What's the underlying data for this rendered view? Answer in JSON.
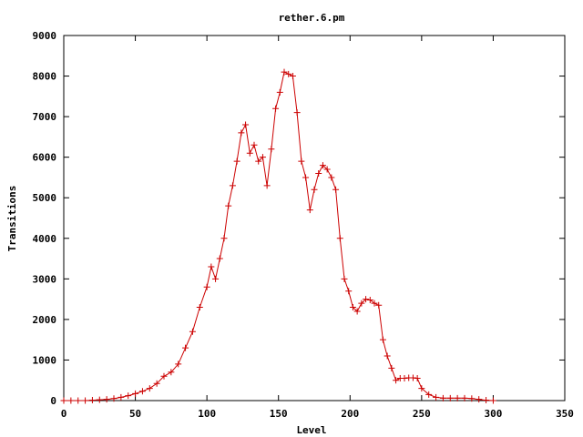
{
  "chart_data": {
    "type": "line",
    "title": "rether.6.pm",
    "xlabel": "Level",
    "ylabel": "Transitions",
    "xlim": [
      0,
      350
    ],
    "ylim": [
      0,
      9000
    ],
    "x_ticks": [
      0,
      50,
      100,
      150,
      200,
      250,
      300,
      350
    ],
    "y_ticks": [
      0,
      1000,
      2000,
      3000,
      4000,
      5000,
      6000,
      7000,
      8000,
      9000
    ],
    "grid": false,
    "legend": "none",
    "marker": "+",
    "color": "#cc0000",
    "series": [
      {
        "x": [
          0,
          5,
          10,
          15,
          20,
          25,
          30,
          35,
          40,
          45,
          50,
          55,
          60,
          65,
          70,
          75,
          80,
          85,
          90,
          95,
          100,
          103,
          106,
          109,
          112,
          115,
          118,
          121,
          124,
          127,
          130,
          133,
          136,
          139,
          142,
          145,
          148,
          151,
          154,
          157,
          160,
          163,
          166,
          169,
          172,
          175,
          178,
          181,
          184,
          187,
          190,
          193,
          196,
          199,
          202,
          205,
          208,
          211,
          214,
          217,
          220,
          223,
          226,
          229,
          232,
          235,
          238,
          241,
          244,
          247,
          250,
          255,
          260,
          265,
          270,
          275,
          280,
          285,
          290,
          295,
          300
        ],
        "y": [
          0,
          0,
          0,
          0,
          10,
          20,
          30,
          50,
          80,
          120,
          170,
          230,
          300,
          420,
          600,
          700,
          900,
          1300,
          1700,
          2300,
          2800,
          3300,
          3000,
          3500,
          4000,
          4800,
          5300,
          5900,
          6600,
          6800,
          6100,
          6300,
          5900,
          6000,
          5300,
          6200,
          7200,
          7600,
          8100,
          8050,
          8000,
          7100,
          5900,
          5500,
          4700,
          5200,
          5600,
          5800,
          5700,
          5500,
          5200,
          4000,
          3000,
          2700,
          2300,
          2200,
          2400,
          2500,
          2480,
          2400,
          2350,
          1500,
          1100,
          800,
          500,
          550,
          550,
          560,
          560,
          550,
          300,
          150,
          80,
          60,
          60,
          60,
          60,
          50,
          30,
          10,
          0
        ]
      }
    ]
  }
}
